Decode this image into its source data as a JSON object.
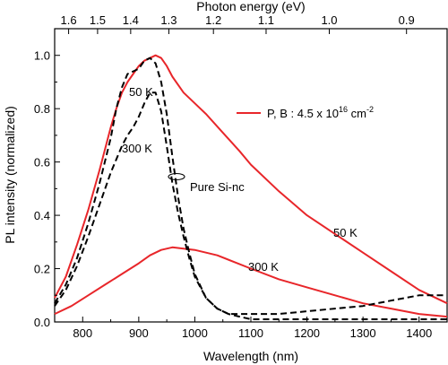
{
  "chart_data": {
    "type": "line",
    "xlabel": "Wavelength (nm)",
    "ylabel": "PL intensity (normalized)",
    "top_xlabel": "Photon energy (eV)",
    "xlim": [
      750,
      1450
    ],
    "ylim": [
      0.0,
      1.1
    ],
    "x_ticks": [
      800,
      900,
      1000,
      1100,
      1200,
      1300,
      1400
    ],
    "y_ticks": [
      0.0,
      0.2,
      0.4,
      0.6,
      0.8,
      1.0
    ],
    "top_ticks": [
      1.6,
      1.5,
      1.4,
      1.3,
      1.2,
      1.1,
      1.0,
      0.9
    ],
    "x_tick_labels": [
      "800",
      "900",
      "1000",
      "1100",
      "1200",
      "1300",
      "1400"
    ],
    "y_tick_labels": [
      "0.0",
      "0.2",
      "0.4",
      "0.6",
      "0.8",
      "1.0"
    ],
    "top_tick_labels": [
      "1.6",
      "1.5",
      "1.4",
      "1.3",
      "1.2",
      "1.1",
      "1.0",
      "0.9"
    ],
    "legend": {
      "label_prefix": "P, B : 4.5 x 10",
      "label_exp": "16",
      "label_unit": " cm",
      "label_unit_exp": "-2",
      "color": "#e8262a",
      "placement": "right"
    },
    "annotations": {
      "label_50k_dashed": "50 K",
      "label_300k_dashed": "300 K",
      "label_pure": "Pure Si-nc",
      "label_50k_red": "50 K",
      "label_300k_red": "300 K"
    },
    "series": [
      {
        "style": "red-solid",
        "color": "#e8262a",
        "x": [
          750,
          770,
          790,
          810,
          830,
          850,
          860,
          870,
          880,
          890,
          900,
          910,
          920,
          930,
          940,
          950,
          960,
          980,
          1000,
          1020,
          1050,
          1080,
          1100,
          1150,
          1200,
          1250,
          1300,
          1350,
          1400,
          1450
        ],
        "y": [
          0.09,
          0.17,
          0.29,
          0.42,
          0.57,
          0.73,
          0.8,
          0.86,
          0.9,
          0.93,
          0.96,
          0.98,
          0.99,
          1.0,
          0.99,
          0.96,
          0.92,
          0.86,
          0.82,
          0.78,
          0.71,
          0.64,
          0.59,
          0.49,
          0.4,
          0.33,
          0.26,
          0.19,
          0.12,
          0.07
        ]
      },
      {
        "style": "red-solid",
        "color": "#e8262a",
        "x": [
          750,
          780,
          810,
          840,
          870,
          900,
          920,
          940,
          960,
          980,
          1000,
          1040,
          1100,
          1150,
          1200,
          1250,
          1300,
          1350,
          1400,
          1450
        ],
        "y": [
          0.03,
          0.06,
          0.1,
          0.14,
          0.18,
          0.22,
          0.25,
          0.27,
          0.28,
          0.275,
          0.27,
          0.25,
          0.2,
          0.16,
          0.13,
          0.1,
          0.07,
          0.05,
          0.03,
          0.02
        ]
      },
      {
        "style": "black-dashed",
        "color": "#000000",
        "x": [
          750,
          770,
          790,
          810,
          830,
          850,
          860,
          870,
          880,
          890,
          900,
          910,
          920,
          930,
          940,
          950,
          960,
          970,
          980,
          990,
          1000,
          1020,
          1040,
          1060,
          1080,
          1100,
          1150,
          1200,
          1300,
          1400,
          1450
        ],
        "y": [
          0.07,
          0.14,
          0.24,
          0.37,
          0.52,
          0.69,
          0.8,
          0.88,
          0.93,
          0.94,
          0.95,
          0.98,
          0.99,
          0.97,
          0.9,
          0.78,
          0.62,
          0.47,
          0.35,
          0.26,
          0.18,
          0.09,
          0.05,
          0.03,
          0.02,
          0.01,
          0.01,
          0.01,
          0.01,
          0.01,
          0.01
        ]
      },
      {
        "style": "black-dashed",
        "color": "#000000",
        "x": [
          750,
          770,
          790,
          810,
          830,
          850,
          860,
          870,
          880,
          890,
          900,
          910,
          920,
          930,
          940,
          950,
          960,
          970,
          980,
          990,
          1000,
          1020,
          1040,
          1060,
          1080,
          1100,
          1150,
          1200,
          1250,
          1300,
          1350,
          1400,
          1450
        ],
        "y": [
          0.06,
          0.12,
          0.21,
          0.32,
          0.44,
          0.56,
          0.61,
          0.66,
          0.7,
          0.73,
          0.77,
          0.82,
          0.86,
          0.86,
          0.79,
          0.66,
          0.52,
          0.41,
          0.32,
          0.24,
          0.17,
          0.09,
          0.05,
          0.03,
          0.03,
          0.03,
          0.03,
          0.04,
          0.05,
          0.06,
          0.08,
          0.1,
          0.1
        ]
      }
    ]
  }
}
